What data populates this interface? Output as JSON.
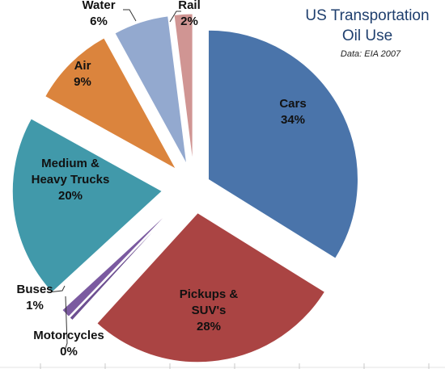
{
  "chart_data": {
    "type": "pie",
    "title_lines": [
      "US Transportation",
      "Oil Use"
    ],
    "subtitle": "Data: EIA 2007",
    "legend": "none",
    "slices": [
      {
        "label_lines": [
          "Cars"
        ],
        "pct_label": "34%",
        "value": 34,
        "color": "#4a74aa"
      },
      {
        "label_lines": [
          "Pickups &",
          "SUV's"
        ],
        "pct_label": "28%",
        "value": 28,
        "color": "#aa4443"
      },
      {
        "label_lines": [
          "Motorcycles"
        ],
        "pct_label": "0%",
        "value": 0.4,
        "color": "#6d4f91"
      },
      {
        "label_lines": [
          "Buses"
        ],
        "pct_label": "1%",
        "value": 1,
        "color": "#7b5aa0"
      },
      {
        "label_lines": [
          "Medium &",
          "Heavy Trucks"
        ],
        "pct_label": "20%",
        "value": 20,
        "color": "#4199aa"
      },
      {
        "label_lines": [
          "Air"
        ],
        "pct_label": "9%",
        "value": 9,
        "color": "#db843d"
      },
      {
        "label_lines": [
          "Water"
        ],
        "pct_label": "6%",
        "value": 6,
        "color": "#93a9cf"
      },
      {
        "label_lines": [
          "Rail"
        ],
        "pct_label": "2%",
        "value": 2,
        "color": "#d09593"
      }
    ]
  }
}
